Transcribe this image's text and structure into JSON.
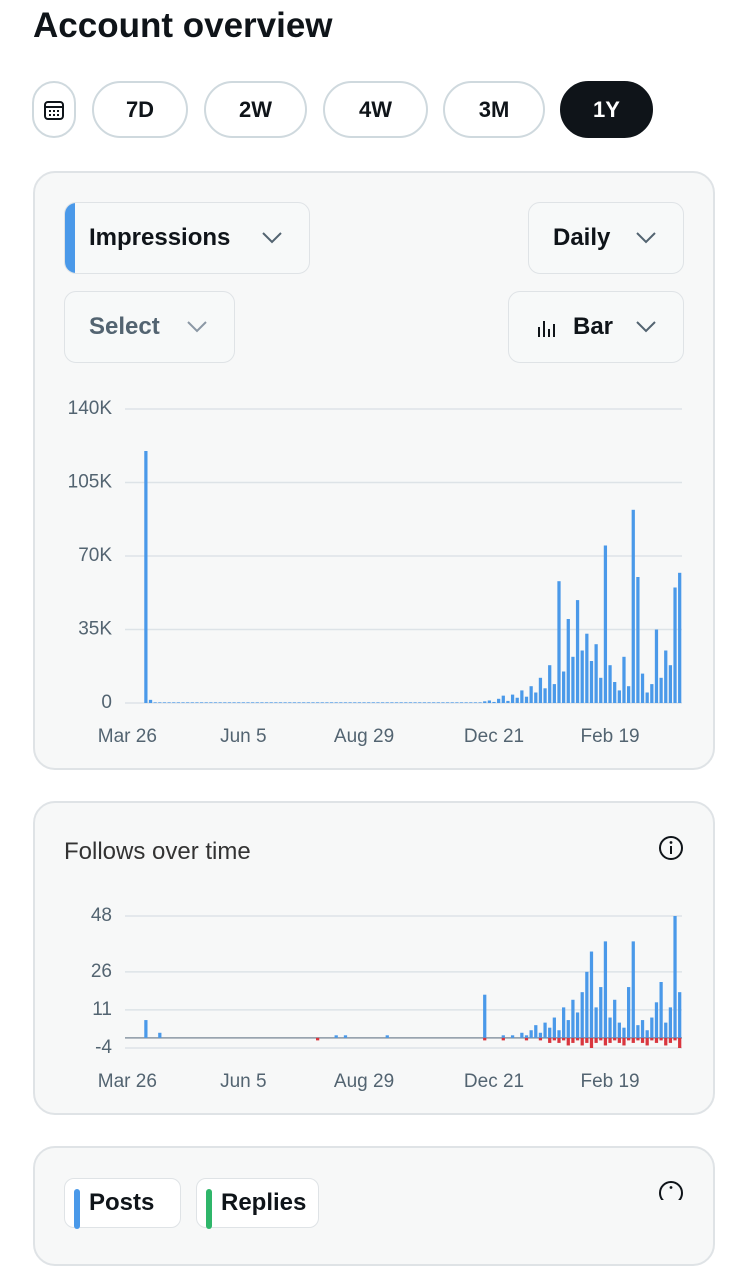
{
  "header": {
    "title": "Account overview"
  },
  "range_buttons": [
    "7D",
    "2W",
    "4W",
    "3M",
    "1Y"
  ],
  "controls": {
    "metric": "Impressions",
    "interval": "Daily",
    "compare": "Select",
    "chart_style": "Bar"
  },
  "chart_data": [
    {
      "type": "bar",
      "categories": [
        "Mar 26",
        null,
        null,
        null,
        null,
        null,
        null,
        null,
        null,
        null,
        null,
        null,
        null,
        null,
        null,
        null,
        null,
        null,
        null,
        null,
        null,
        null,
        null,
        null,
        null,
        "Jun 5",
        null,
        null,
        null,
        null,
        null,
        null,
        null,
        null,
        null,
        null,
        null,
        null,
        null,
        null,
        null,
        null,
        null,
        null,
        null,
        null,
        null,
        null,
        null,
        null,
        null,
        "Aug 29",
        null,
        null,
        null,
        null,
        null,
        null,
        null,
        null,
        null,
        null,
        null,
        null,
        null,
        null,
        null,
        null,
        null,
        null,
        null,
        null,
        null,
        null,
        null,
        null,
        null,
        null,
        null,
        "Dec 21",
        null,
        null,
        null,
        null,
        null,
        null,
        null,
        null,
        null,
        null,
        null,
        null,
        null,
        null,
        null,
        null,
        null,
        null,
        null,
        null,
        null,
        null,
        null,
        null,
        "Feb 19",
        null,
        null,
        null,
        null,
        null,
        null,
        null,
        null,
        null,
        null,
        null,
        null,
        null,
        null,
        null
      ],
      "series": [
        {
          "color": "#4a99e9",
          "values": [
            0,
            0,
            0,
            0,
            120000,
            1500,
            300,
            300,
            300,
            300,
            300,
            300,
            300,
            300,
            300,
            300,
            300,
            300,
            300,
            300,
            300,
            300,
            300,
            300,
            300,
            300,
            300,
            300,
            300,
            300,
            300,
            300,
            300,
            300,
            300,
            300,
            300,
            300,
            300,
            300,
            300,
            300,
            300,
            300,
            300,
            300,
            300,
            300,
            300,
            300,
            300,
            300,
            300,
            300,
            300,
            300,
            300,
            300,
            300,
            300,
            300,
            300,
            300,
            300,
            300,
            300,
            300,
            300,
            300,
            300,
            300,
            300,
            300,
            300,
            300,
            300,
            300,
            800,
            1200,
            500,
            2000,
            3500,
            1000,
            4000,
            2500,
            6000,
            3000,
            8000,
            5000,
            12000,
            7000,
            18000,
            9000,
            58000,
            15000,
            40000,
            22000,
            49000,
            25000,
            33000,
            20000,
            28000,
            12000,
            75000,
            18000,
            10000,
            6000,
            22000,
            8000,
            92000,
            60000,
            14000,
            5000,
            9000,
            35000,
            12000,
            25000,
            18000,
            55000,
            62000
          ]
        }
      ],
      "ylim": [
        0,
        140000
      ],
      "yticks": [
        {
          "value": 0,
          "label": "0"
        },
        {
          "value": 35000,
          "label": "35K"
        },
        {
          "value": 70000,
          "label": "70K"
        },
        {
          "value": 105000,
          "label": "105K"
        },
        {
          "value": 140000,
          "label": "140K"
        }
      ],
      "grid": true
    },
    {
      "type": "bar",
      "title": "Follows over time",
      "categories": [
        "Mar 26",
        null,
        null,
        null,
        null,
        null,
        null,
        null,
        null,
        null,
        null,
        null,
        null,
        null,
        null,
        null,
        null,
        null,
        null,
        null,
        null,
        null,
        null,
        null,
        null,
        "Jun 5",
        null,
        null,
        null,
        null,
        null,
        null,
        null,
        null,
        null,
        null,
        null,
        null,
        null,
        null,
        null,
        null,
        null,
        null,
        null,
        null,
        null,
        null,
        null,
        null,
        null,
        "Aug 29",
        null,
        null,
        null,
        null,
        null,
        null,
        null,
        null,
        null,
        null,
        null,
        null,
        null,
        null,
        null,
        null,
        null,
        null,
        null,
        null,
        null,
        null,
        null,
        null,
        null,
        null,
        null,
        "Dec 21",
        null,
        null,
        null,
        null,
        null,
        null,
        null,
        null,
        null,
        null,
        null,
        null,
        null,
        null,
        null,
        null,
        null,
        null,
        null,
        null,
        null,
        null,
        null,
        null,
        "Feb 19",
        null,
        null,
        null,
        null,
        null,
        null,
        null,
        null,
        null,
        null,
        null,
        null,
        null,
        null,
        null
      ],
      "series": [
        {
          "color": "#4a99e9",
          "values": [
            0,
            0,
            0,
            0,
            7,
            0,
            0,
            2,
            0,
            0,
            0,
            0,
            0,
            0,
            0,
            0,
            0,
            0,
            0,
            0,
            0,
            0,
            0,
            0,
            0,
            0,
            0,
            0,
            0,
            0,
            0,
            0,
            0,
            0,
            0,
            0,
            0,
            0,
            0,
            0,
            0,
            0,
            0,
            0,
            0,
            1,
            0,
            1,
            0,
            0,
            0,
            0,
            0,
            0,
            0,
            0,
            1,
            0,
            0,
            0,
            0,
            0,
            0,
            0,
            0,
            0,
            0,
            0,
            0,
            0,
            0,
            0,
            0,
            0,
            0,
            0,
            0,
            17,
            0,
            0,
            0,
            1,
            0,
            1,
            0,
            2,
            1,
            3,
            5,
            2,
            6,
            4,
            8,
            3,
            12,
            7,
            15,
            10,
            18,
            26,
            34,
            12,
            20,
            38,
            8,
            15,
            6,
            4,
            20,
            38,
            5,
            7,
            3,
            8,
            14,
            22,
            6,
            12,
            48,
            18
          ]
        },
        {
          "color": "#d9363e",
          "values": [
            0,
            0,
            0,
            0,
            0,
            0,
            0,
            0,
            0,
            0,
            0,
            0,
            0,
            0,
            0,
            0,
            0,
            0,
            0,
            0,
            0,
            0,
            0,
            0,
            0,
            0,
            0,
            0,
            0,
            0,
            0,
            0,
            0,
            0,
            0,
            0,
            0,
            0,
            0,
            0,
            0,
            -1,
            0,
            0,
            0,
            0,
            0,
            0,
            0,
            0,
            0,
            0,
            0,
            0,
            0,
            0,
            0,
            0,
            0,
            0,
            0,
            0,
            0,
            0,
            0,
            0,
            0,
            0,
            0,
            0,
            0,
            0,
            0,
            0,
            0,
            0,
            0,
            -1,
            0,
            0,
            0,
            -1,
            0,
            0,
            0,
            0,
            -1,
            0,
            0,
            -1,
            0,
            -2,
            -1,
            -2,
            -1,
            -3,
            -2,
            -1,
            -3,
            -2,
            -4,
            -2,
            -1,
            -3,
            -2,
            -1,
            -2,
            -3,
            -1,
            -2,
            -1,
            -2,
            -3,
            -1,
            -2,
            -1,
            -3,
            -2,
            -1,
            -4
          ]
        }
      ],
      "ylim": [
        -4,
        48
      ],
      "yticks": [
        -4,
        11,
        26,
        48
      ],
      "grid": true
    }
  ],
  "legend_chips": [
    "Posts",
    "Replies"
  ]
}
